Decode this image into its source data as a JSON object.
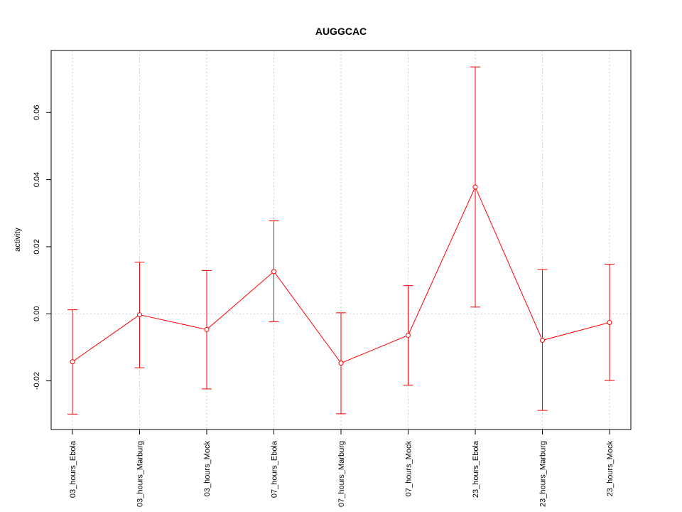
{
  "chart_data": {
    "type": "line",
    "title": "AUGGCAC",
    "xlabel": "",
    "ylabel": "activity",
    "categories": [
      "03_hours_Ebola",
      "03_hours_Marburg",
      "03_hours_Mock",
      "07_hours_Ebola",
      "07_hours_Marburg",
      "07_hours_Mock",
      "23_hours_Ebola",
      "23_hours_Marburg",
      "23_hours_Mock"
    ],
    "series": [
      {
        "values": [
          -0.0143,
          -0.0003,
          -0.0047,
          0.0126,
          -0.0147,
          -0.0064,
          0.0378,
          -0.0079,
          -0.0026
        ],
        "error_low": [
          -0.0299,
          -0.0161,
          -0.0224,
          -0.0024,
          -0.0298,
          -0.0213,
          0.002,
          -0.0288,
          -0.0199
        ],
        "error_high": [
          0.0012,
          0.0154,
          0.0129,
          0.0277,
          0.0003,
          0.0084,
          0.0736,
          0.0132,
          0.0148
        ]
      }
    ],
    "yticks": [
      -0.02,
      0.0,
      0.02,
      0.04,
      0.06
    ],
    "ytick_labels": [
      "-0.02",
      "0.00",
      "0.02",
      "0.04",
      "0.06"
    ],
    "ylim": [
      -0.0345,
      0.0785
    ],
    "grid": true,
    "colors": {
      "series": "#ff0000",
      "grid": "#cfcfcf",
      "frame": "#000000"
    }
  }
}
